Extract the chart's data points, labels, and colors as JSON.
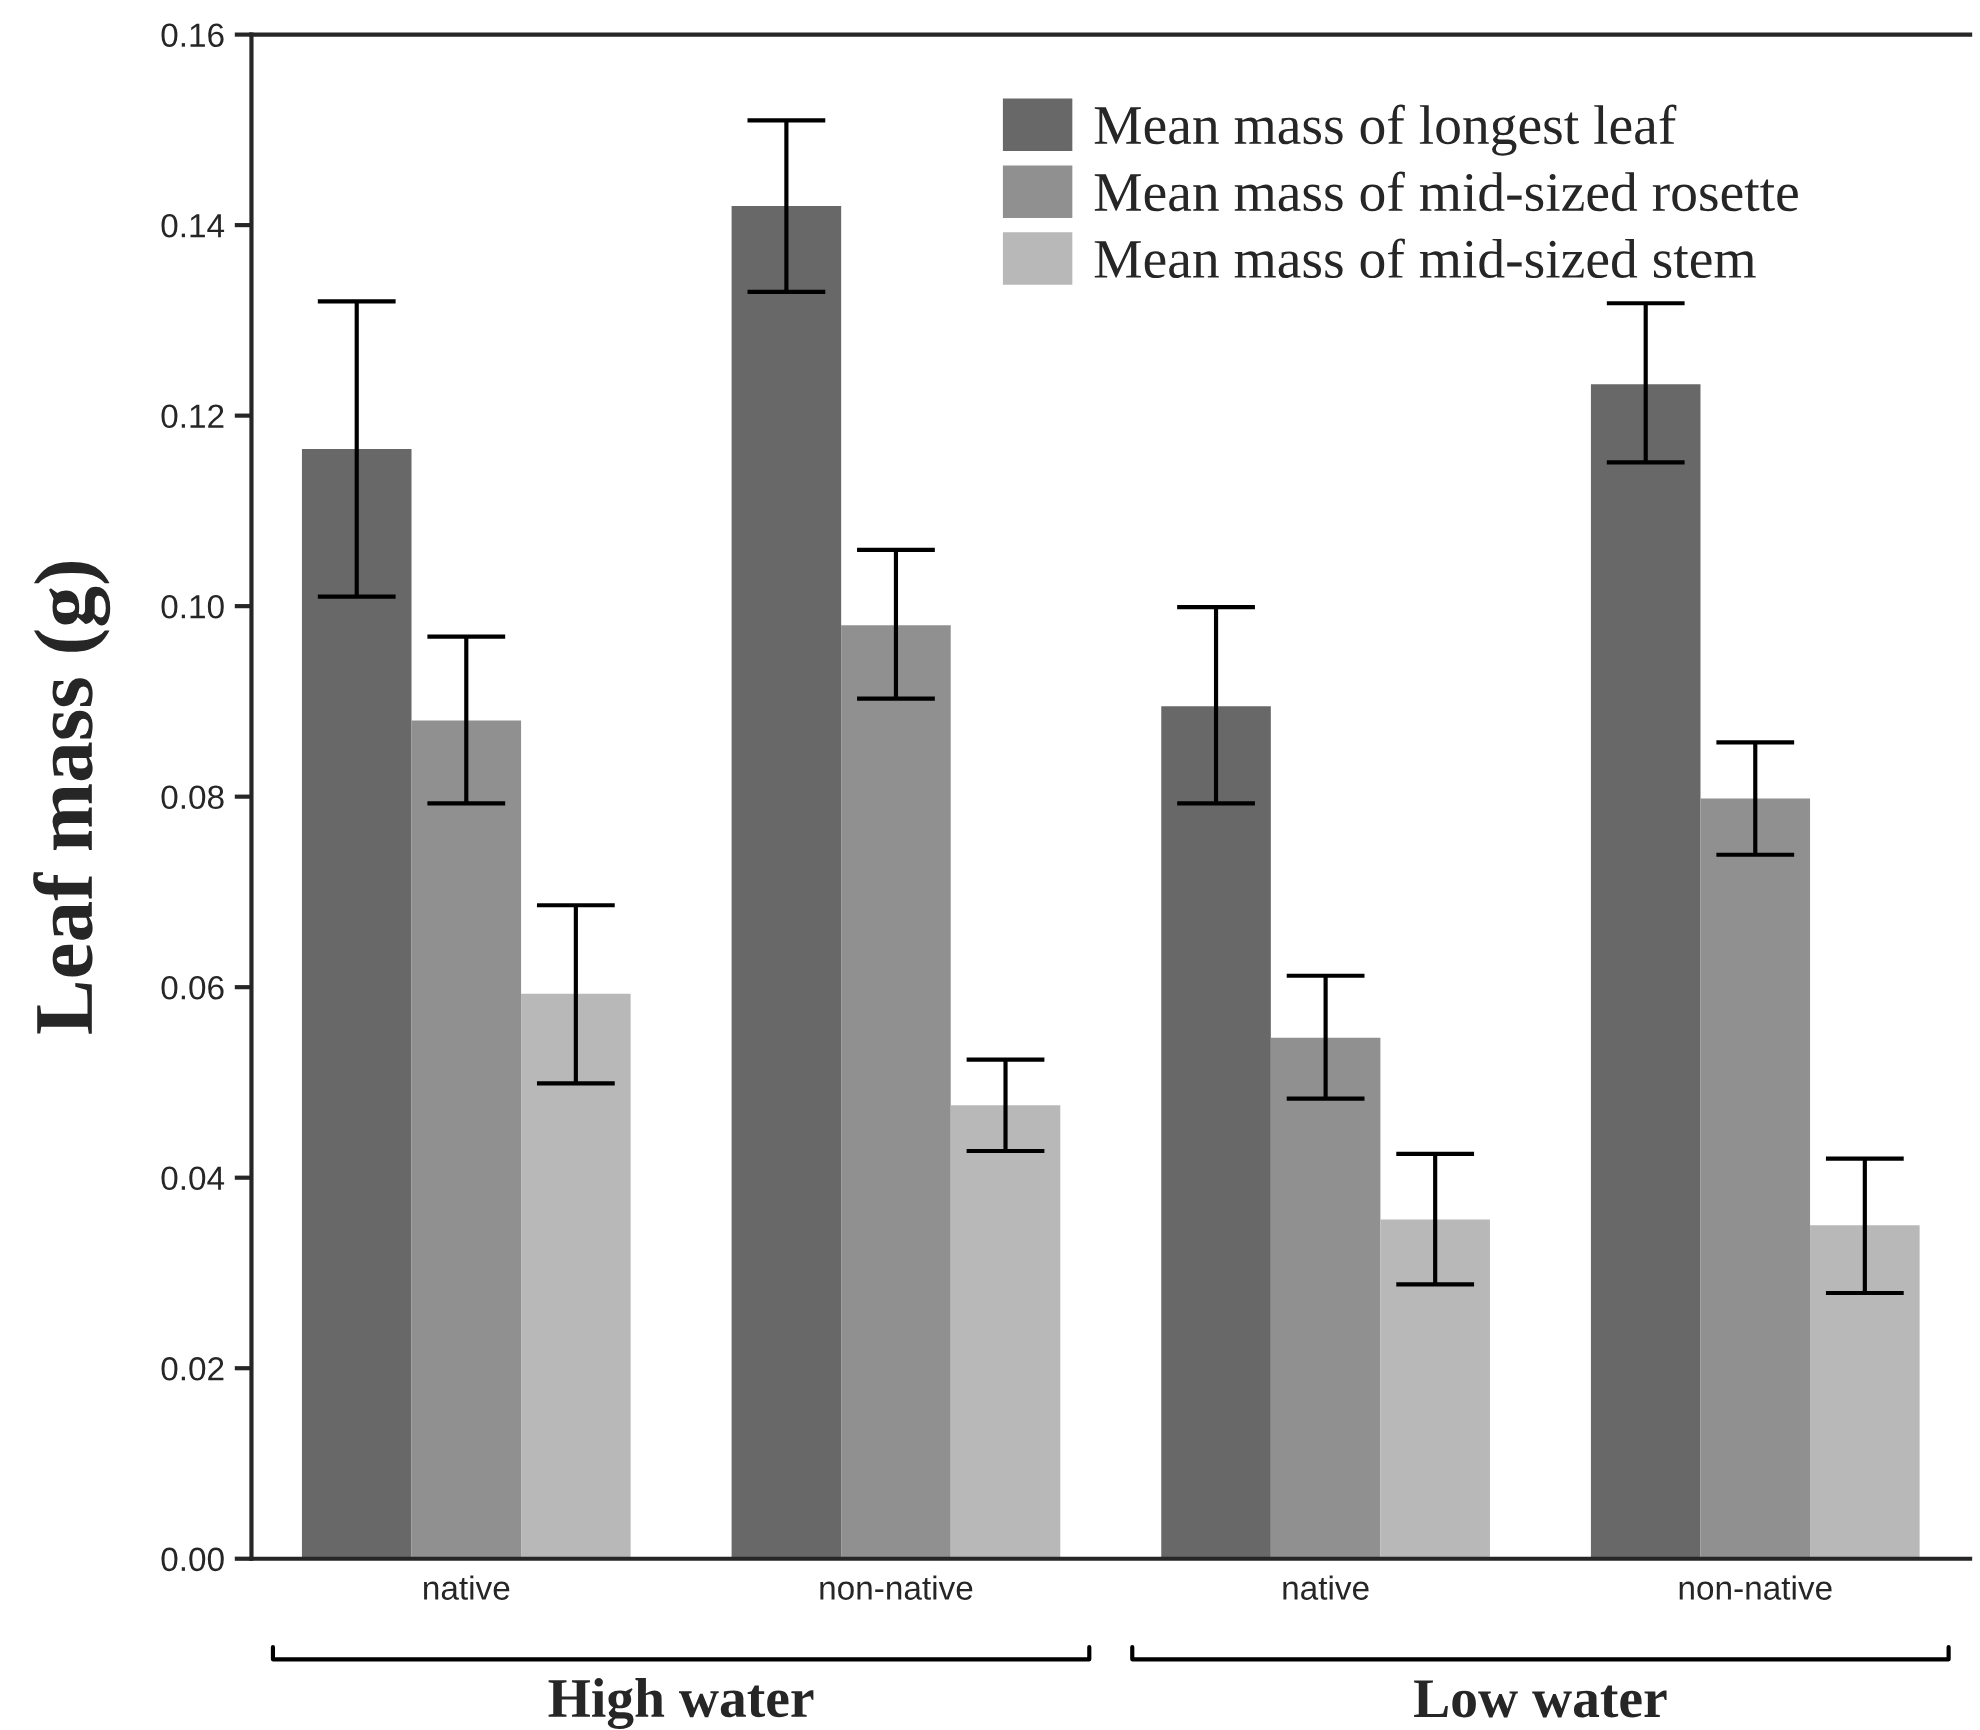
{
  "chart_data": {
    "type": "bar",
    "ylabel": "Leaf mass (g)",
    "categories": [
      "native",
      "non-native",
      "native",
      "non-native"
    ],
    "series": [
      {
        "name": "Mean mass of longest leaf",
        "color": "#686868",
        "values": [
          0.1165,
          0.142,
          0.0895,
          0.1233
        ],
        "errors": [
          [
            0.101,
            0.132
          ],
          [
            0.133,
            0.151
          ],
          [
            0.0793,
            0.0999
          ],
          [
            0.1151,
            0.1318
          ]
        ]
      },
      {
        "name": "Mean mass of mid-sized rosette",
        "color": "#909090",
        "values": [
          0.088,
          0.098,
          0.0547,
          0.0798
        ],
        "errors": [
          [
            0.0793,
            0.0968
          ],
          [
            0.0903,
            0.1059
          ],
          [
            0.0483,
            0.0612
          ],
          [
            0.0739,
            0.0857
          ]
        ]
      },
      {
        "name": "Mean mass of mid-sized stem",
        "color": "#b8b8b8",
        "values": [
          0.0593,
          0.0476,
          0.0356,
          0.035
        ],
        "errors": [
          [
            0.0499,
            0.0686
          ],
          [
            0.0428,
            0.0524
          ],
          [
            0.0288,
            0.0425
          ],
          [
            0.0279,
            0.042
          ]
        ]
      }
    ],
    "ylim": [
      0,
      0.16
    ],
    "yticks": [
      {
        "value": 0,
        "label": "0.00"
      },
      {
        "value": 0.02,
        "label": "0.02"
      },
      {
        "value": 0.04,
        "label": "0.04"
      },
      {
        "value": 0.06,
        "label": "0.06"
      },
      {
        "value": 0.08,
        "label": "0.08"
      },
      {
        "value": 0.1,
        "label": "0.10"
      },
      {
        "value": 0.12,
        "label": "0.12"
      },
      {
        "value": 0.14,
        "label": "0.14"
      },
      {
        "value": 0.16,
        "label": "0.16"
      }
    ],
    "annotations": [
      "High water",
      "Low water"
    ],
    "legend": "top right",
    "grid": false
  }
}
